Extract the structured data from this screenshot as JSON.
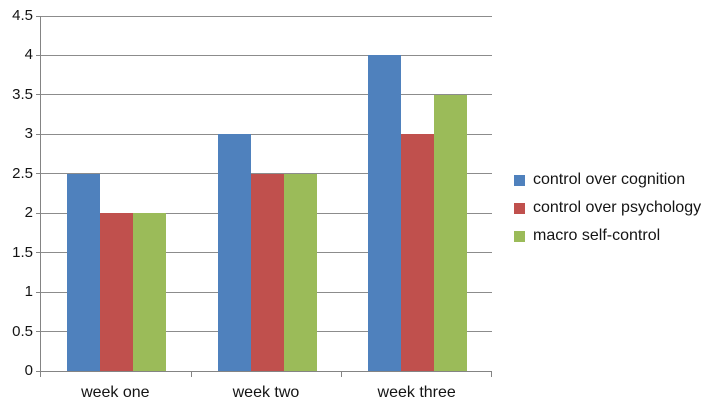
{
  "chart_data": {
    "type": "bar",
    "title": "",
    "categories": [
      "week one",
      "week two",
      "week three"
    ],
    "series": [
      {
        "name": "control over cognition",
        "color": "#4F81BD",
        "values": [
          2.5,
          3.0,
          4.0
        ]
      },
      {
        "name": "control over psychology",
        "color": "#C0504D",
        "values": [
          2.0,
          2.5,
          3.0
        ]
      },
      {
        "name": "macro self-control",
        "color": "#9BBB59",
        "values": [
          2.0,
          2.5,
          3.5
        ]
      }
    ],
    "ylim": [
      0,
      4.5
    ],
    "ytick_step": 0.5,
    "ytick_labels": [
      "0",
      "0.5",
      "1",
      "1.5",
      "2",
      "2.5",
      "3",
      "3.5",
      "4",
      "4.5"
    ],
    "grid": true,
    "legend_position": "right",
    "colors": {
      "gridline": "#8C8C8C",
      "axis": "#848484",
      "text": "#141414",
      "background": "#FFFFFF"
    }
  }
}
